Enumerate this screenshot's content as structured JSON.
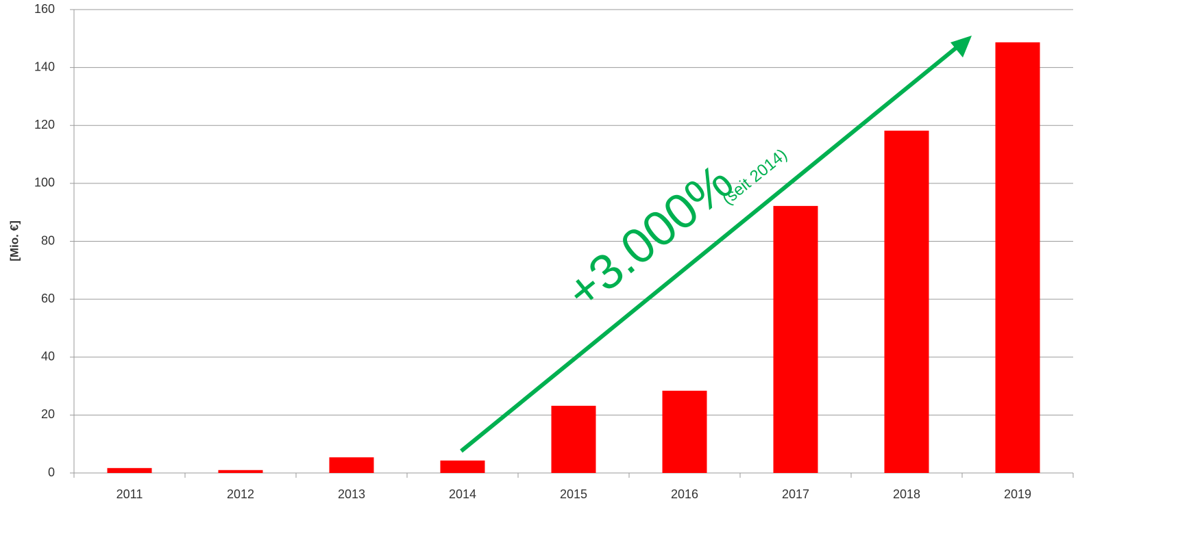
{
  "chart_data": {
    "type": "bar",
    "y_label": "[Mio. €]",
    "categories": [
      "2011",
      "2012",
      "2013",
      "2014",
      "2015",
      "2016",
      "2017",
      "2018",
      "2019"
    ],
    "values": [
      1.7,
      1.0,
      5.4,
      4.3,
      23.2,
      28.4,
      92.2,
      118.2,
      148.7
    ],
    "color": "#ff0000",
    "ylim": [
      0,
      160
    ],
    "yticks": [
      0,
      20,
      40,
      60,
      80,
      100,
      120,
      140,
      160
    ],
    "grid": true,
    "annotations": [
      "+3.000%",
      "(seit 2014)"
    ],
    "annotation_color": "#00b050"
  }
}
